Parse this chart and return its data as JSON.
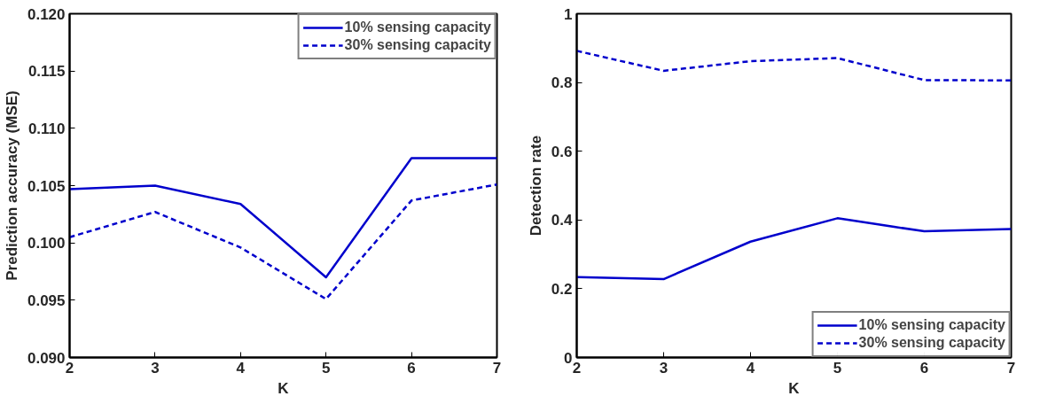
{
  "chart_data": [
    {
      "type": "line",
      "xlabel": "K",
      "ylabel": "Prediction accuracy (MSE)",
      "x": [
        2,
        3,
        4,
        5,
        6,
        7
      ],
      "series": [
        {
          "name": "10% sensing capacity",
          "color": "#0000cc",
          "line_style": "solid",
          "values": [
            0.1047,
            0.105,
            0.1034,
            0.097,
            0.1074,
            0.1074
          ]
        },
        {
          "name": "30% sensing capacity",
          "color": "#0000cc",
          "line_style": "dashed",
          "values": [
            0.1005,
            0.1027,
            0.0996,
            0.0951,
            0.1037,
            0.1051
          ]
        }
      ],
      "xlim": [
        2,
        7
      ],
      "xticks": [
        2,
        3,
        4,
        5,
        6,
        7
      ],
      "ylim": [
        0.09,
        0.12
      ],
      "yticks": [
        {
          "value": 0.09,
          "label": "0.090"
        },
        {
          "value": 0.095,
          "label": "0.095"
        },
        {
          "value": 0.1,
          "label": "0.100"
        },
        {
          "value": 0.105,
          "label": "0.105"
        },
        {
          "value": 0.11,
          "label": "0.110"
        },
        {
          "value": 0.115,
          "label": "0.115"
        },
        {
          "value": 0.12,
          "label": "0.120"
        }
      ],
      "grid": false,
      "legend": "top right",
      "marker": "none"
    },
    {
      "type": "line",
      "xlabel": "K",
      "ylabel": "Detection rate",
      "x": [
        2,
        3,
        4,
        5,
        6,
        7
      ],
      "series": [
        {
          "name": "10% sensing capacity",
          "color": "#0000cc",
          "line_style": "solid",
          "values": [
            0.234,
            0.228,
            0.337,
            0.405,
            0.367,
            0.374
          ]
        },
        {
          "name": "30% sensing capacity",
          "color": "#0000cc",
          "line_style": "dashed",
          "values": [
            0.892,
            0.834,
            0.862,
            0.871,
            0.807,
            0.806
          ]
        }
      ],
      "xlim": [
        2,
        7
      ],
      "xticks": [
        2,
        3,
        4,
        5,
        6,
        7
      ],
      "ylim": [
        0,
        1
      ],
      "yticks": [
        0,
        0.2,
        0.4,
        0.6,
        0.8,
        1
      ],
      "grid": false,
      "legend": "bottom right",
      "marker": "none"
    }
  ]
}
